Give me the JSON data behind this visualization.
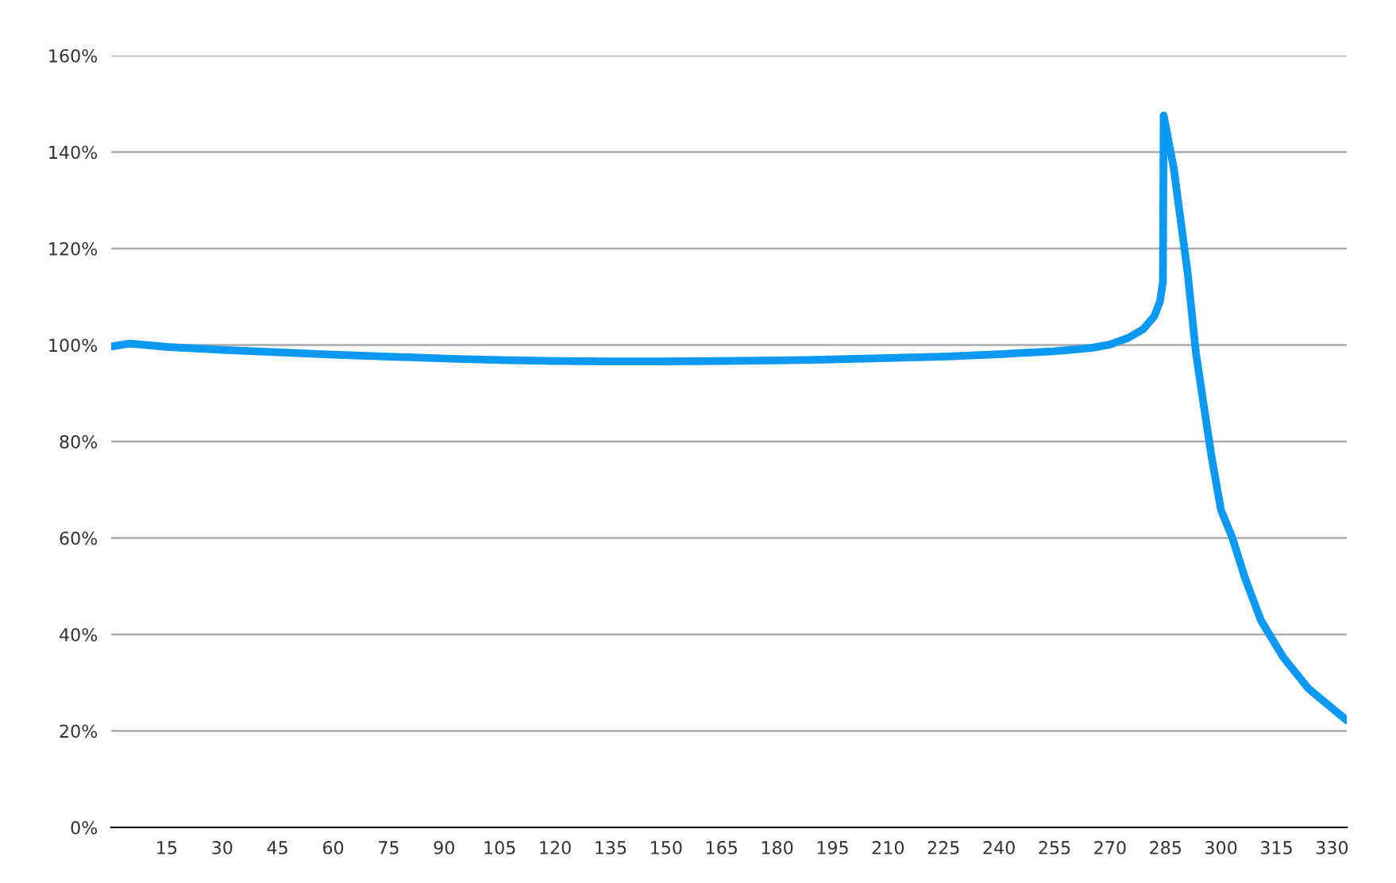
{
  "chart_data": {
    "type": "line",
    "series": [
      {
        "color": "#0b99f4",
        "x": [
          0,
          5,
          15,
          30,
          45,
          60,
          75,
          90,
          105,
          120,
          135,
          150,
          165,
          180,
          195,
          210,
          225,
          240,
          255,
          265,
          270,
          275,
          279,
          282,
          283.5,
          284.3,
          284.5,
          287.2,
          291,
          293.2,
          295.3,
          297.5,
          300,
          303,
          306.5,
          310.8,
          316.8,
          323.6,
          334
        ],
        "values": [
          99.7,
          100.3,
          99.6,
          99.0,
          98.5,
          98.0,
          97.6,
          97.2,
          96.9,
          96.7,
          96.6,
          96.6,
          96.7,
          96.8,
          97.0,
          97.3,
          97.6,
          98.1,
          98.7,
          99.4,
          100.1,
          101.5,
          103.3,
          106,
          109,
          113,
          147.6,
          136.8,
          114.9,
          98.5,
          87.7,
          76.6,
          65.8,
          60.2,
          51.7,
          42.9,
          35.3,
          28.8,
          22.2
        ]
      }
    ],
    "xlim": [
      0,
      334
    ],
    "xticks": [
      15,
      30,
      45,
      60,
      75,
      90,
      105,
      120,
      135,
      150,
      165,
      180,
      195,
      210,
      225,
      240,
      255,
      270,
      285,
      300,
      315,
      330
    ],
    "ylim": [
      0,
      160
    ],
    "yticks": [
      {
        "value": 0,
        "label": "0%"
      },
      {
        "value": 20,
        "label": "20%"
      },
      {
        "value": 40,
        "label": "40%"
      },
      {
        "value": 60,
        "label": "60%"
      },
      {
        "value": 80,
        "label": "80%"
      },
      {
        "value": 100,
        "label": "100%"
      },
      {
        "value": 120,
        "label": "120%"
      },
      {
        "value": 140,
        "label": "140%"
      },
      {
        "value": 160,
        "label": "160%"
      }
    ],
    "grid": "y",
    "marker": "none",
    "line_style": "solid"
  }
}
